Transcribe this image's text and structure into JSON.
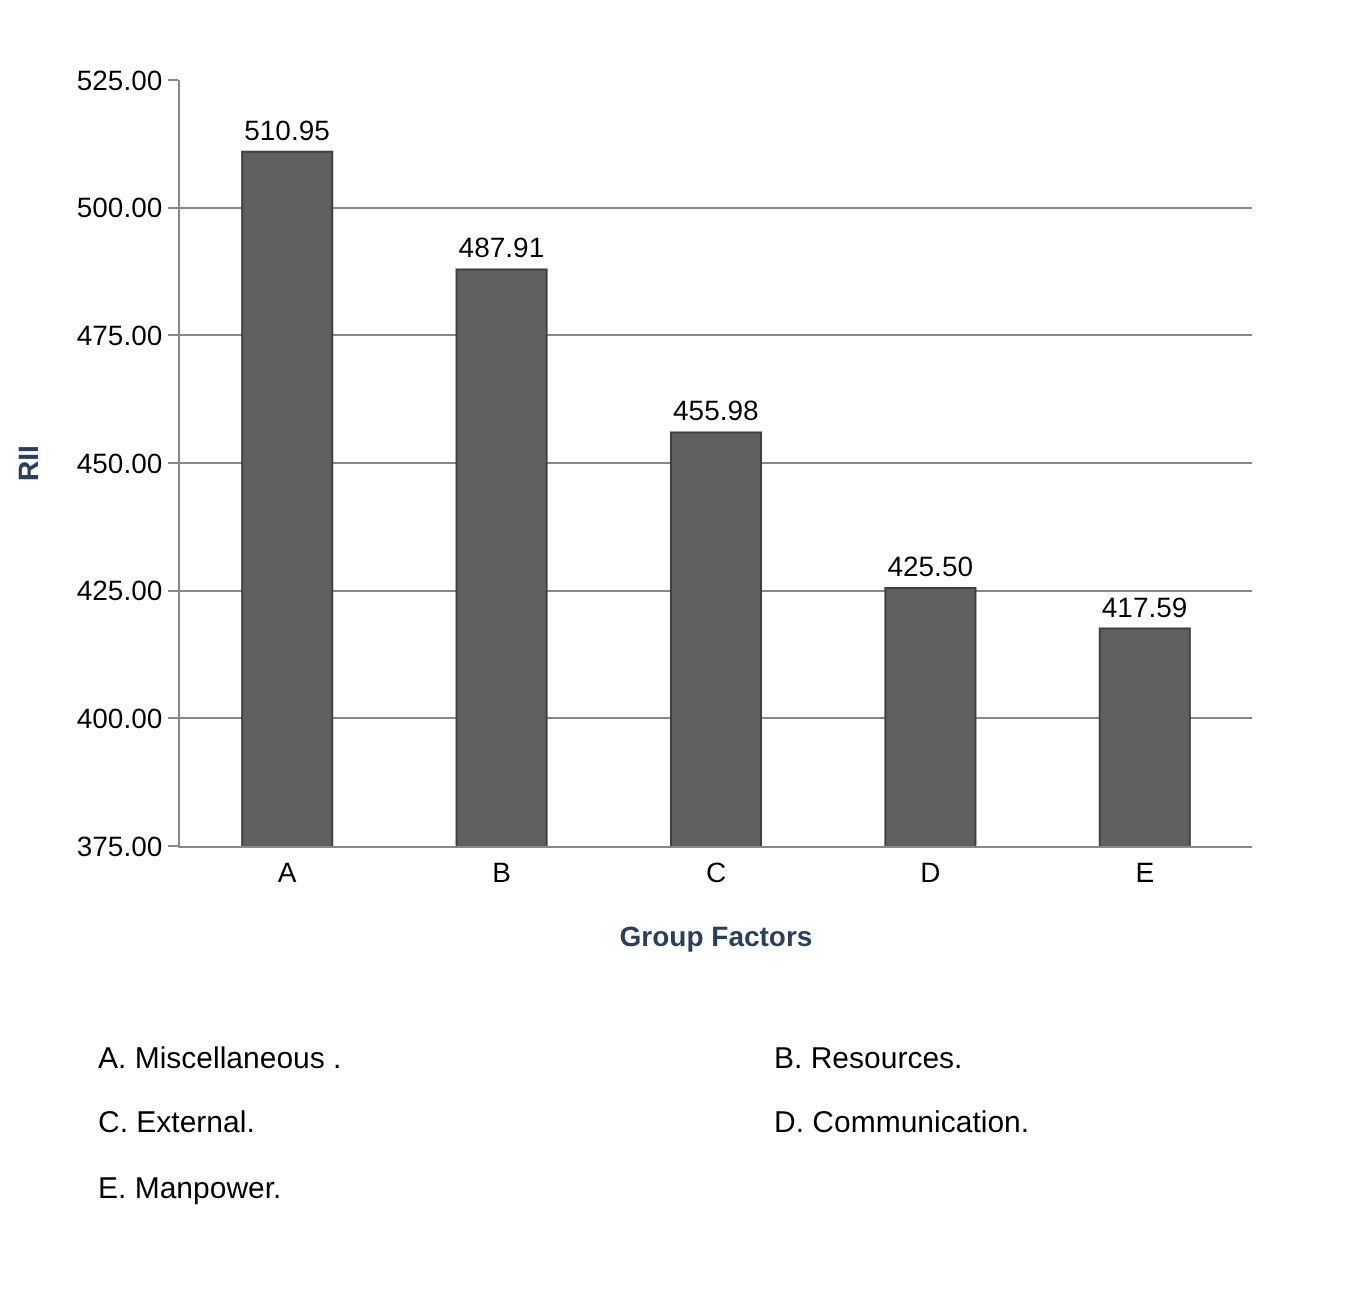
{
  "chart_data": {
    "type": "bar",
    "categories": [
      "A",
      "B",
      "C",
      "D",
      "E"
    ],
    "values": [
      510.95,
      487.91,
      455.98,
      425.5,
      417.59
    ],
    "value_labels": [
      "510.95",
      "487.91",
      "455.98",
      "425.50",
      "417.59"
    ],
    "color": "#606060",
    "xlabel": "Group Factors",
    "ylabel": "RII",
    "ylim": [
      375,
      525
    ],
    "yticks": [
      {
        "value": 375,
        "label": "375.00"
      },
      {
        "value": 400,
        "label": "400.00"
      },
      {
        "value": 425,
        "label": "425.00"
      },
      {
        "value": 450,
        "label": "450.00"
      },
      {
        "value": 475,
        "label": "475.00"
      },
      {
        "value": 500,
        "label": "500.00"
      },
      {
        "value": 525,
        "label": "525.00"
      }
    ],
    "grid": "y",
    "legend": false,
    "annotations": [
      "A. Miscellaneous .",
      "B. Resources.",
      "C. External.",
      "D. Communication.",
      "E. Manpower."
    ]
  }
}
